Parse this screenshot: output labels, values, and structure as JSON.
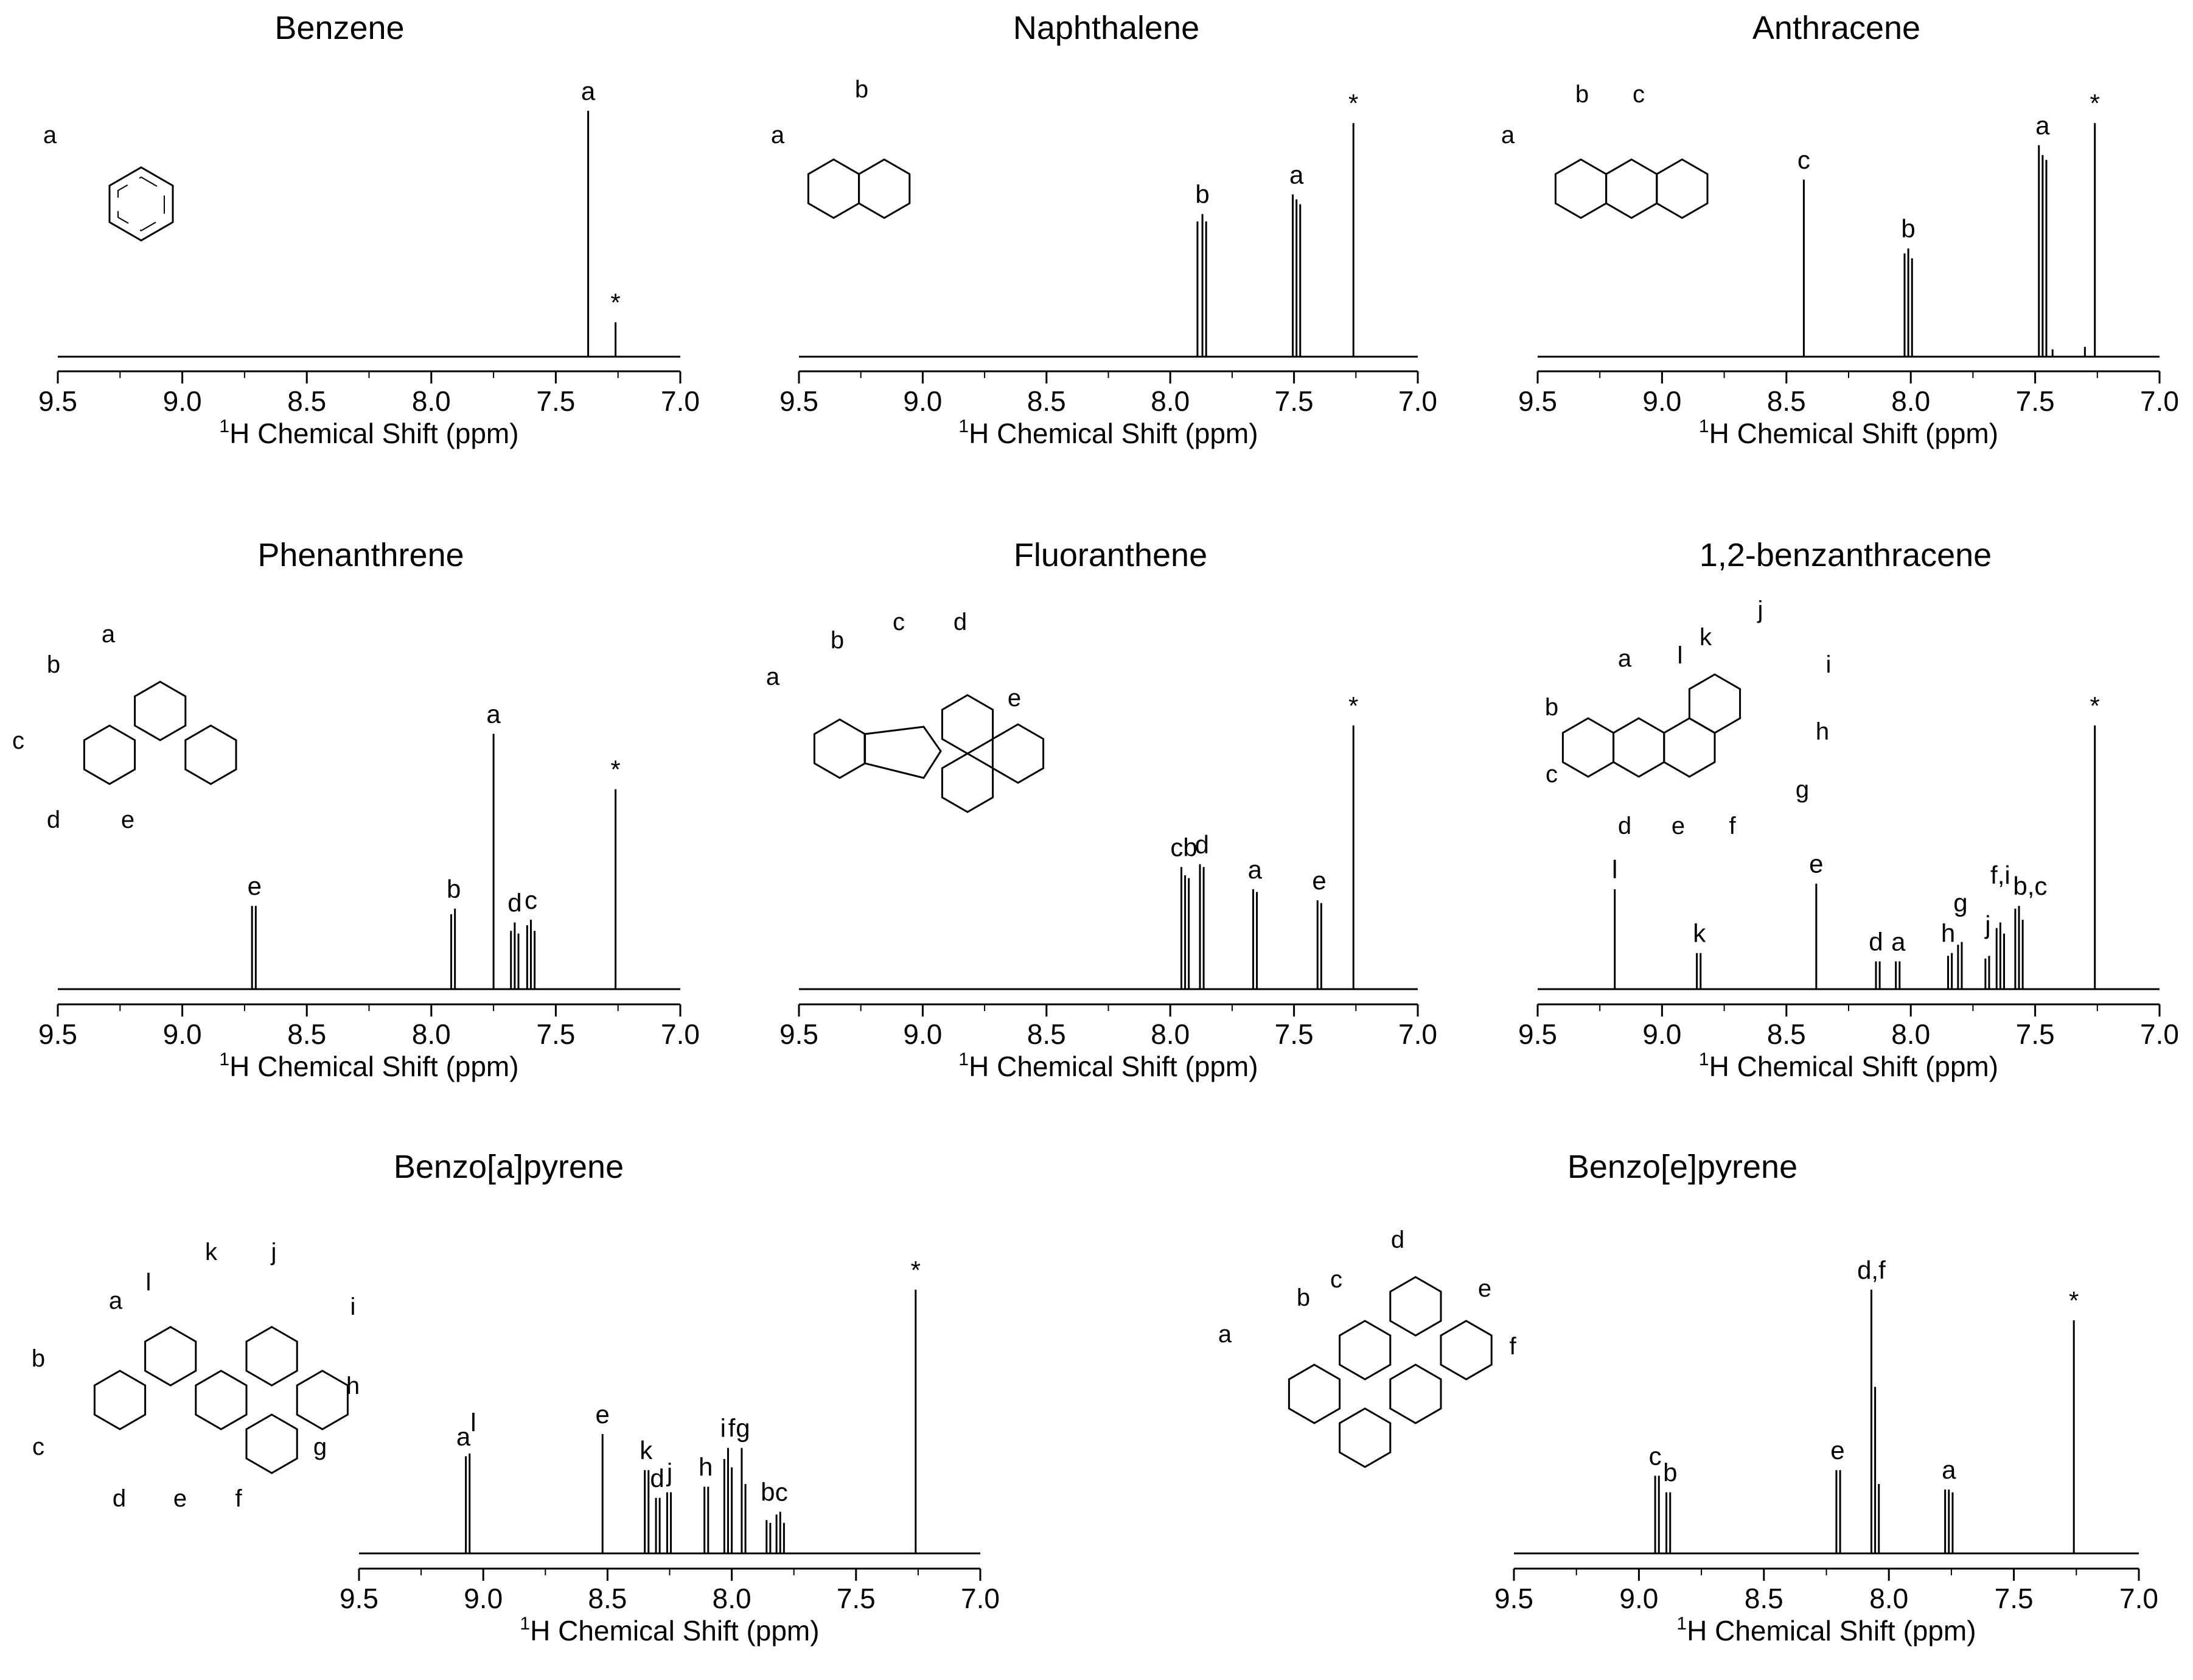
{
  "axis_label": {
    "sup": "1",
    "main": "H Chemical Shift (ppm)"
  },
  "chart_data": [
    {
      "type": "line",
      "title": "Benzene",
      "xlabel": "1H Chemical Shift (ppm)",
      "xlim": [
        9.5,
        7.0
      ],
      "ticks": [
        9.5,
        9.0,
        8.5,
        8.0,
        7.5,
        7.0
      ],
      "tick_labels": [
        "9.5",
        "9.0",
        "8.5",
        "8.0",
        "7.5",
        "7.0"
      ],
      "peaks": [
        {
          "ppm": 7.37,
          "h": 1.0
        },
        {
          "ppm": 7.26,
          "h": 0.14
        }
      ],
      "peak_labels": [
        {
          "text": "a",
          "ppm": 7.37,
          "h": 1.0
        },
        {
          "text": "*",
          "ppm": 7.26,
          "h": 0.14
        }
      ],
      "structure_labels": [
        "a"
      ]
    },
    {
      "type": "line",
      "title": "Naphthalene",
      "xlabel": "1H Chemical Shift (ppm)",
      "xlim": [
        9.5,
        7.0
      ],
      "ticks": [
        9.5,
        9.0,
        8.5,
        8.0,
        7.5,
        7.0
      ],
      "tick_labels": [
        "9.5",
        "9.0",
        "8.5",
        "8.0",
        "7.5",
        "7.0"
      ],
      "peaks": [
        {
          "ppm": 7.89,
          "h": 0.55
        },
        {
          "ppm": 7.87,
          "h": 0.58
        },
        {
          "ppm": 7.855,
          "h": 0.55
        },
        {
          "ppm": 7.505,
          "h": 0.66
        },
        {
          "ppm": 7.49,
          "h": 0.64
        },
        {
          "ppm": 7.475,
          "h": 0.62
        },
        {
          "ppm": 7.26,
          "h": 0.95
        }
      ],
      "peak_labels": [
        {
          "text": "b",
          "ppm": 7.87,
          "h": 0.58
        },
        {
          "text": "a",
          "ppm": 7.49,
          "h": 0.66
        },
        {
          "text": "*",
          "ppm": 7.26,
          "h": 0.95
        }
      ],
      "structure_labels": [
        "a",
        "b"
      ]
    },
    {
      "type": "line",
      "title": "Anthracene",
      "xlabel": "1H Chemical Shift (ppm)",
      "xlim": [
        9.5,
        7.0
      ],
      "ticks": [
        9.5,
        9.0,
        8.5,
        8.0,
        7.5,
        7.0
      ],
      "tick_labels": [
        "9.5",
        "9.0",
        "8.5",
        "8.0",
        "7.5",
        "7.0"
      ],
      "peaks": [
        {
          "ppm": 8.43,
          "h": 0.72
        },
        {
          "ppm": 8.025,
          "h": 0.42
        },
        {
          "ppm": 8.01,
          "h": 0.44
        },
        {
          "ppm": 7.995,
          "h": 0.4
        },
        {
          "ppm": 7.485,
          "h": 0.86
        },
        {
          "ppm": 7.47,
          "h": 0.82
        },
        {
          "ppm": 7.455,
          "h": 0.8
        },
        {
          "ppm": 7.43,
          "h": 0.03
        },
        {
          "ppm": 7.3,
          "h": 0.04
        },
        {
          "ppm": 7.26,
          "h": 0.95
        }
      ],
      "peak_labels": [
        {
          "text": "c",
          "ppm": 8.43,
          "h": 0.72
        },
        {
          "text": "b",
          "ppm": 8.01,
          "h": 0.44
        },
        {
          "text": "a",
          "ppm": 7.47,
          "h": 0.86
        },
        {
          "text": "*",
          "ppm": 7.26,
          "h": 0.95
        }
      ],
      "structure_labels": [
        "a",
        "b",
        "c"
      ]
    },
    {
      "type": "line",
      "title": "Phenanthrene",
      "xlabel": "1H Chemical Shift (ppm)",
      "xlim": [
        9.5,
        7.0
      ],
      "ticks": [
        9.5,
        9.0,
        8.5,
        8.0,
        7.5,
        7.0
      ],
      "tick_labels": [
        "9.5",
        "9.0",
        "8.5",
        "8.0",
        "7.5",
        "7.0"
      ],
      "peaks": [
        {
          "ppm": 8.72,
          "h": 0.3
        },
        {
          "ppm": 8.705,
          "h": 0.3
        },
        {
          "ppm": 7.92,
          "h": 0.27
        },
        {
          "ppm": 7.905,
          "h": 0.29
        },
        {
          "ppm": 7.75,
          "h": 0.92
        },
        {
          "ppm": 7.68,
          "h": 0.21
        },
        {
          "ppm": 7.665,
          "h": 0.24
        },
        {
          "ppm": 7.65,
          "h": 0.2
        },
        {
          "ppm": 7.615,
          "h": 0.23
        },
        {
          "ppm": 7.6,
          "h": 0.25
        },
        {
          "ppm": 7.585,
          "h": 0.21
        },
        {
          "ppm": 7.26,
          "h": 0.72
        }
      ],
      "peak_labels": [
        {
          "text": "e",
          "ppm": 8.71,
          "h": 0.3
        },
        {
          "text": "b",
          "ppm": 7.91,
          "h": 0.29
        },
        {
          "text": "a",
          "ppm": 7.75,
          "h": 0.92
        },
        {
          "text": "d",
          "ppm": 7.665,
          "h": 0.24
        },
        {
          "text": "c",
          "ppm": 7.6,
          "h": 0.25
        },
        {
          "text": "*",
          "ppm": 7.26,
          "h": 0.72
        }
      ],
      "structure_labels": [
        "a",
        "b",
        "c",
        "d",
        "e"
      ]
    },
    {
      "type": "line",
      "title": "Fluoranthene",
      "xlabel": "1H Chemical Shift (ppm)",
      "xlim": [
        9.5,
        7.0
      ],
      "ticks": [
        9.5,
        9.0,
        8.5,
        8.0,
        7.5,
        7.0
      ],
      "tick_labels": [
        "9.5",
        "9.0",
        "8.5",
        "8.0",
        "7.5",
        "7.0"
      ],
      "peaks": [
        {
          "ppm": 7.955,
          "h": 0.44
        },
        {
          "ppm": 7.94,
          "h": 0.41
        },
        {
          "ppm": 7.925,
          "h": 0.4
        },
        {
          "ppm": 7.88,
          "h": 0.45
        },
        {
          "ppm": 7.865,
          "h": 0.44
        },
        {
          "ppm": 7.665,
          "h": 0.36
        },
        {
          "ppm": 7.65,
          "h": 0.35
        },
        {
          "ppm": 7.405,
          "h": 0.32
        },
        {
          "ppm": 7.39,
          "h": 0.31
        },
        {
          "ppm": 7.26,
          "h": 0.95
        }
      ],
      "peak_labels": [
        {
          "text": "cb",
          "ppm": 7.945,
          "h": 0.44
        },
        {
          "text": "d",
          "ppm": 7.872,
          "h": 0.45
        },
        {
          "text": "a",
          "ppm": 7.658,
          "h": 0.36
        },
        {
          "text": "e",
          "ppm": 7.398,
          "h": 0.32
        },
        {
          "text": "*",
          "ppm": 7.26,
          "h": 0.95
        }
      ],
      "structure_labels": [
        "a",
        "b",
        "c",
        "d",
        "e"
      ]
    },
    {
      "type": "line",
      "title": "1,2-benzanthracene",
      "xlabel": "1H Chemical Shift (ppm)",
      "xlim": [
        9.5,
        7.0
      ],
      "ticks": [
        9.5,
        9.0,
        8.5,
        8.0,
        7.5,
        7.0
      ],
      "tick_labels": [
        "9.5",
        "9.0",
        "8.5",
        "8.0",
        "7.5",
        "7.0"
      ],
      "peaks": [
        {
          "ppm": 9.19,
          "h": 0.36
        },
        {
          "ppm": 8.86,
          "h": 0.13
        },
        {
          "ppm": 8.845,
          "h": 0.13
        },
        {
          "ppm": 8.38,
          "h": 0.38
        },
        {
          "ppm": 8.14,
          "h": 0.1
        },
        {
          "ppm": 8.125,
          "h": 0.1
        },
        {
          "ppm": 8.06,
          "h": 0.1
        },
        {
          "ppm": 8.045,
          "h": 0.1
        },
        {
          "ppm": 7.85,
          "h": 0.12
        },
        {
          "ppm": 7.835,
          "h": 0.13
        },
        {
          "ppm": 7.81,
          "h": 0.16
        },
        {
          "ppm": 7.795,
          "h": 0.17
        },
        {
          "ppm": 7.7,
          "h": 0.11
        },
        {
          "ppm": 7.685,
          "h": 0.12
        },
        {
          "ppm": 7.655,
          "h": 0.22
        },
        {
          "ppm": 7.64,
          "h": 0.24
        },
        {
          "ppm": 7.625,
          "h": 0.2
        },
        {
          "ppm": 7.58,
          "h": 0.29
        },
        {
          "ppm": 7.565,
          "h": 0.3
        },
        {
          "ppm": 7.55,
          "h": 0.25
        },
        {
          "ppm": 7.26,
          "h": 0.95
        }
      ],
      "peak_labels": [
        {
          "text": "l",
          "ppm": 9.19,
          "h": 0.36
        },
        {
          "text": "k",
          "ppm": 8.85,
          "h": 0.13
        },
        {
          "text": "e",
          "ppm": 8.38,
          "h": 0.38
        },
        {
          "text": "d",
          "ppm": 8.14,
          "h": 0.1
        },
        {
          "text": "a",
          "ppm": 8.05,
          "h": 0.1
        },
        {
          "text": "h",
          "ppm": 7.85,
          "h": 0.13
        },
        {
          "text": "g",
          "ppm": 7.8,
          "h": 0.24
        },
        {
          "text": "j",
          "ppm": 7.69,
          "h": 0.16
        },
        {
          "text": "f,i",
          "ppm": 7.64,
          "h": 0.34
        },
        {
          "text": "b,c",
          "ppm": 7.52,
          "h": 0.3
        },
        {
          "text": "*",
          "ppm": 7.26,
          "h": 0.95
        }
      ],
      "structure_labels": [
        "a",
        "b",
        "c",
        "d",
        "e",
        "f",
        "g",
        "h",
        "i",
        "j",
        "k",
        "l"
      ]
    },
    {
      "type": "line",
      "title": "Benzo[a]pyrene",
      "xlabel": "1H Chemical Shift (ppm)",
      "xlim": [
        9.5,
        7.0
      ],
      "ticks": [
        9.5,
        9.0,
        8.5,
        8.0,
        7.5,
        7.0
      ],
      "tick_labels": [
        "9.5",
        "9.0",
        "8.5",
        "8.0",
        "7.5",
        "7.0"
      ],
      "peaks": [
        {
          "ppm": 9.07,
          "h": 0.35
        },
        {
          "ppm": 9.055,
          "h": 0.36
        },
        {
          "ppm": 8.52,
          "h": 0.43
        },
        {
          "ppm": 8.35,
          "h": 0.3
        },
        {
          "ppm": 8.335,
          "h": 0.3
        },
        {
          "ppm": 8.305,
          "h": 0.2
        },
        {
          "ppm": 8.29,
          "h": 0.2
        },
        {
          "ppm": 8.26,
          "h": 0.22
        },
        {
          "ppm": 8.245,
          "h": 0.22
        },
        {
          "ppm": 8.11,
          "h": 0.24
        },
        {
          "ppm": 8.095,
          "h": 0.24
        },
        {
          "ppm": 8.03,
          "h": 0.34
        },
        {
          "ppm": 8.015,
          "h": 0.38
        },
        {
          "ppm": 8.0,
          "h": 0.31
        },
        {
          "ppm": 7.96,
          "h": 0.38
        },
        {
          "ppm": 7.945,
          "h": 0.25
        },
        {
          "ppm": 7.86,
          "h": 0.12
        },
        {
          "ppm": 7.845,
          "h": 0.11
        },
        {
          "ppm": 7.82,
          "h": 0.14
        },
        {
          "ppm": 7.805,
          "h": 0.15
        },
        {
          "ppm": 7.79,
          "h": 0.11
        },
        {
          "ppm": 7.26,
          "h": 0.95
        }
      ],
      "peak_labels": [
        {
          "text": "a",
          "ppm": 9.08,
          "h": 0.35
        },
        {
          "text": "l",
          "ppm": 9.04,
          "h": 0.4
        },
        {
          "text": "e",
          "ppm": 8.52,
          "h": 0.43
        },
        {
          "text": "k",
          "ppm": 8.345,
          "h": 0.3
        },
        {
          "text": "d",
          "ppm": 8.3,
          "h": 0.2
        },
        {
          "text": "j",
          "ppm": 8.25,
          "h": 0.22
        },
        {
          "text": "h",
          "ppm": 8.105,
          "h": 0.24
        },
        {
          "text": "i",
          "ppm": 8.035,
          "h": 0.38
        },
        {
          "text": "f",
          "ppm": 8.0,
          "h": 0.38
        },
        {
          "text": "g",
          "ppm": 7.955,
          "h": 0.38
        },
        {
          "text": "b",
          "ppm": 7.855,
          "h": 0.15
        },
        {
          "text": "c",
          "ppm": 7.8,
          "h": 0.15
        },
        {
          "text": "*",
          "ppm": 7.26,
          "h": 0.95
        }
      ],
      "structure_labels": [
        "a",
        "b",
        "c",
        "d",
        "e",
        "f",
        "g",
        "h",
        "i",
        "j",
        "k",
        "l"
      ]
    },
    {
      "type": "line",
      "title": "Benzo[e]pyrene",
      "xlabel": "1H Chemical Shift (ppm)",
      "xlim": [
        9.5,
        7.0
      ],
      "ticks": [
        9.5,
        9.0,
        8.5,
        8.0,
        7.5,
        7.0
      ],
      "tick_labels": [
        "9.5",
        "9.0",
        "8.5",
        "8.0",
        "7.5",
        "7.0"
      ],
      "peaks": [
        {
          "ppm": 8.935,
          "h": 0.28
        },
        {
          "ppm": 8.92,
          "h": 0.28
        },
        {
          "ppm": 8.89,
          "h": 0.22
        },
        {
          "ppm": 8.875,
          "h": 0.22
        },
        {
          "ppm": 8.21,
          "h": 0.3
        },
        {
          "ppm": 8.195,
          "h": 0.3
        },
        {
          "ppm": 8.07,
          "h": 0.95
        },
        {
          "ppm": 8.055,
          "h": 0.6
        },
        {
          "ppm": 8.04,
          "h": 0.25
        },
        {
          "ppm": 7.775,
          "h": 0.23
        },
        {
          "ppm": 7.76,
          "h": 0.23
        },
        {
          "ppm": 7.745,
          "h": 0.22
        },
        {
          "ppm": 7.26,
          "h": 0.84
        }
      ],
      "peak_labels": [
        {
          "text": "c",
          "ppm": 8.935,
          "h": 0.28
        },
        {
          "text": "b",
          "ppm": 8.875,
          "h": 0.22
        },
        {
          "text": "e",
          "ppm": 8.205,
          "h": 0.3
        },
        {
          "text": "d,f",
          "ppm": 8.07,
          "h": 0.95
        },
        {
          "text": "a",
          "ppm": 7.76,
          "h": 0.23
        },
        {
          "text": "*",
          "ppm": 7.26,
          "h": 0.84
        }
      ],
      "structure_labels": [
        "a",
        "b",
        "c",
        "d",
        "e",
        "f"
      ]
    }
  ]
}
